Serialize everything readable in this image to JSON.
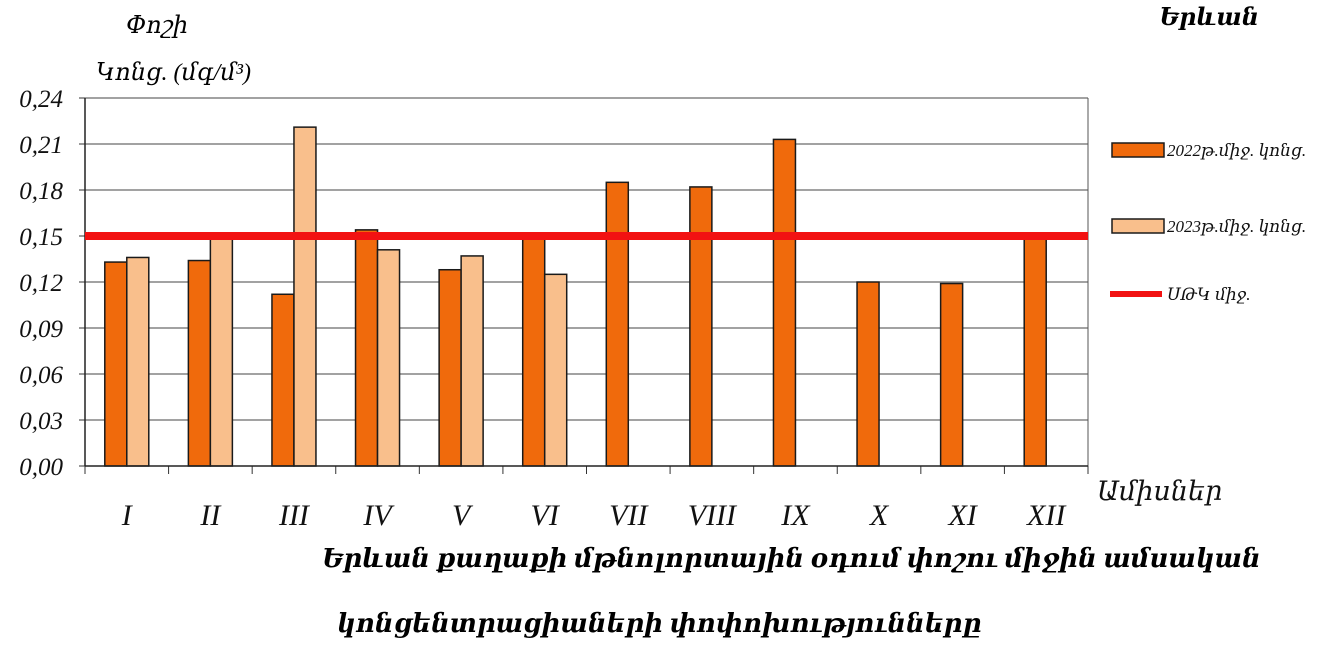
{
  "city": "Երևան",
  "chart_data": {
    "type": "bar",
    "title": "Երևան քաղաքի մթնոլորտային օդում փոշու միջին ամսական կոնցենտրացիաների փոփոխությունները",
    "title_line1": "Երևան քաղաքի մթնոլորտային օդում փոշու միջին ամսական",
    "title_line2": "կոնցենտրացիաների փոփոխությունները",
    "ylabel_line1": "Փոշի",
    "ylabel_line2": "Կոնց. (մգ/մ³)",
    "xlabel": "Ամիսներ",
    "categories": [
      "I",
      "II",
      "III",
      "IV",
      "V",
      "VI",
      "VII",
      "VIII",
      "IX",
      "X",
      "XI",
      "XII"
    ],
    "ylim": [
      0,
      0.24
    ],
    "yticks": [
      "0,00",
      "0,03",
      "0,06",
      "0,09",
      "0,12",
      "0,15",
      "0,18",
      "0,21",
      "0,24"
    ],
    "series": [
      {
        "name": "2022թ.միջ. կոնց.",
        "color": "#f06a0c",
        "values": [
          0.133,
          0.134,
          0.112,
          0.154,
          0.128,
          0.15,
          0.185,
          0.182,
          0.213,
          0.12,
          0.119,
          0.15
        ]
      },
      {
        "name": "2023թ.միջ. կոնց.",
        "color": "#f9bf8c",
        "values": [
          0.136,
          0.15,
          0.221,
          0.141,
          0.137,
          0.125,
          null,
          null,
          null,
          null,
          null,
          null
        ]
      }
    ],
    "reference_line": {
      "name": "ՍԹԿ միջ.",
      "value": 0.15,
      "color": "#f21212"
    },
    "grid": true,
    "legend_position": "right"
  }
}
